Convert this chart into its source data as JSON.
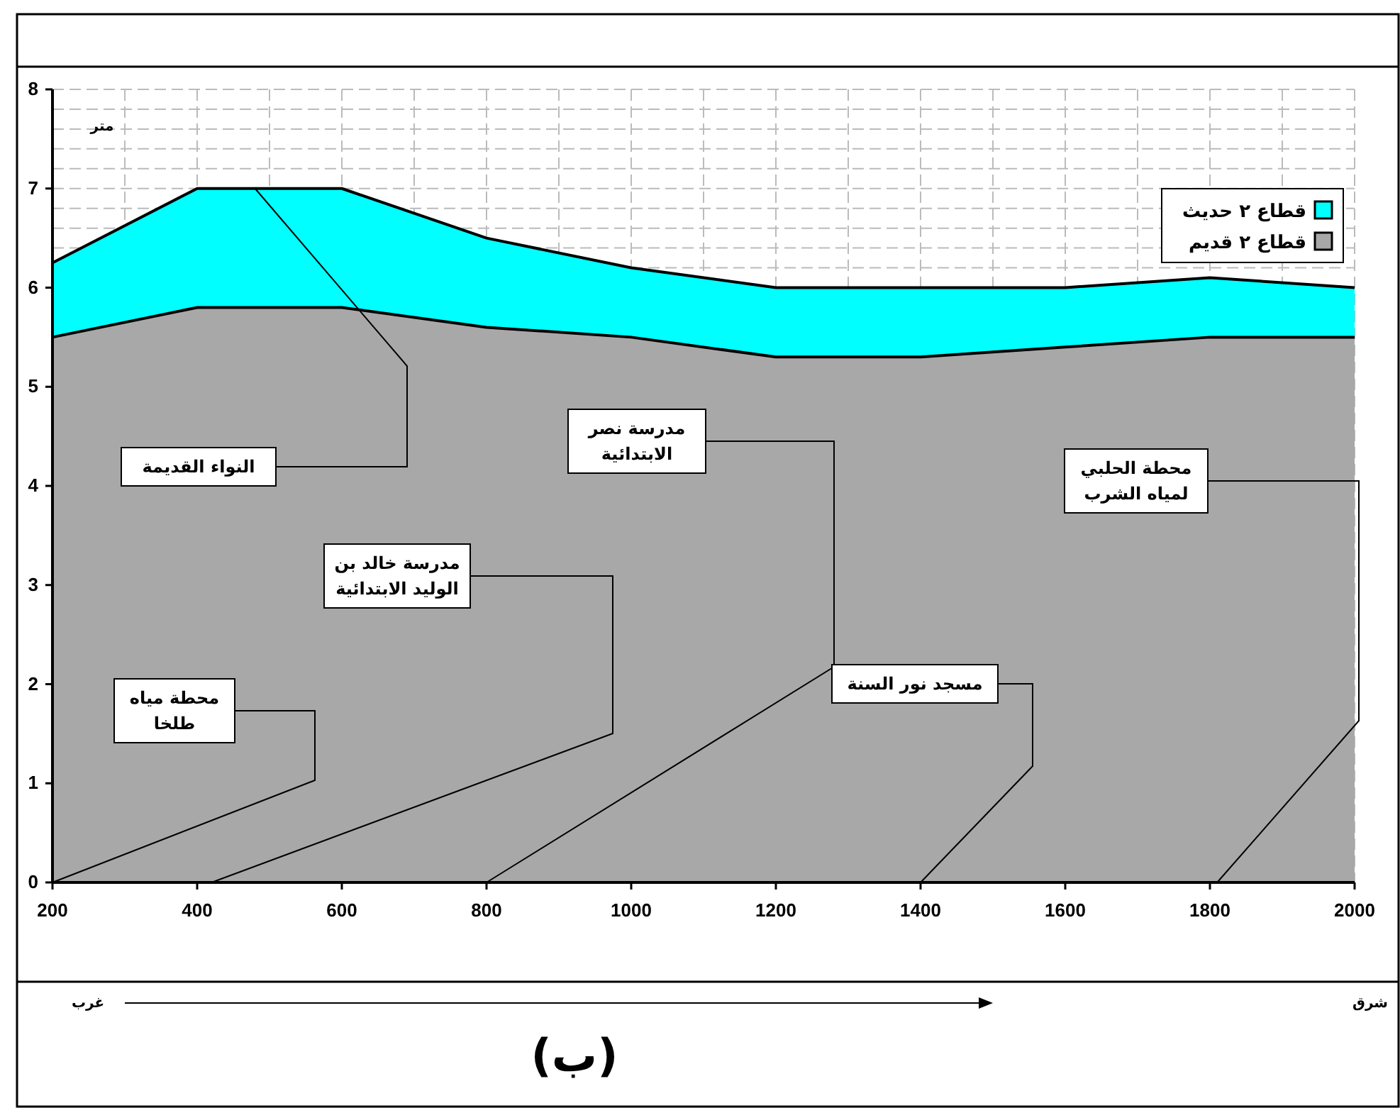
{
  "chart_data": {
    "type": "area",
    "title": "(ب)",
    "ylabel": "متر",
    "x": [
      200,
      400,
      600,
      800,
      1000,
      1200,
      1400,
      1600,
      1800,
      2000
    ],
    "series": [
      {
        "name": "قطاع ٢ حديث",
        "color": "#00ffff",
        "values": [
          6.25,
          7.0,
          7.0,
          6.5,
          6.2,
          6.0,
          6.0,
          6.0,
          6.1,
          6.0
        ]
      },
      {
        "name": "قطاع ٢ قديم",
        "color": "#a8a8a8",
        "values": [
          5.5,
          5.8,
          5.8,
          5.6,
          5.5,
          5.3,
          5.3,
          5.4,
          5.5,
          5.5
        ]
      }
    ],
    "xlim": [
      200,
      2000
    ],
    "xticks": [
      200,
      400,
      600,
      800,
      1000,
      1200,
      1400,
      1600,
      1800,
      2000
    ],
    "ylim": [
      0,
      8
    ],
    "yticks": [
      0,
      1,
      2,
      3,
      4,
      5,
      6,
      7,
      8
    ],
    "grid": true,
    "legend": "top right",
    "annotations": [
      {
        "text": "محطة مياه طلخا",
        "x": 200,
        "y": 0
      },
      {
        "text": "مدرسة خالد بن الوليد الابتدائية",
        "x": 420,
        "y": 0
      },
      {
        "text": "مدرسة نصر الابتدائية",
        "x": 800,
        "y": 0
      },
      {
        "text": "مسجد نور السنة",
        "x": 1400,
        "y": 0
      },
      {
        "text": "محطة الحلبي لمياه الشرب",
        "x": 1810,
        "y": 0
      },
      {
        "text": "النواء القديمة",
        "x": 480,
        "y": 7.0
      },
      "غرب",
      "شرق"
    ]
  }
}
